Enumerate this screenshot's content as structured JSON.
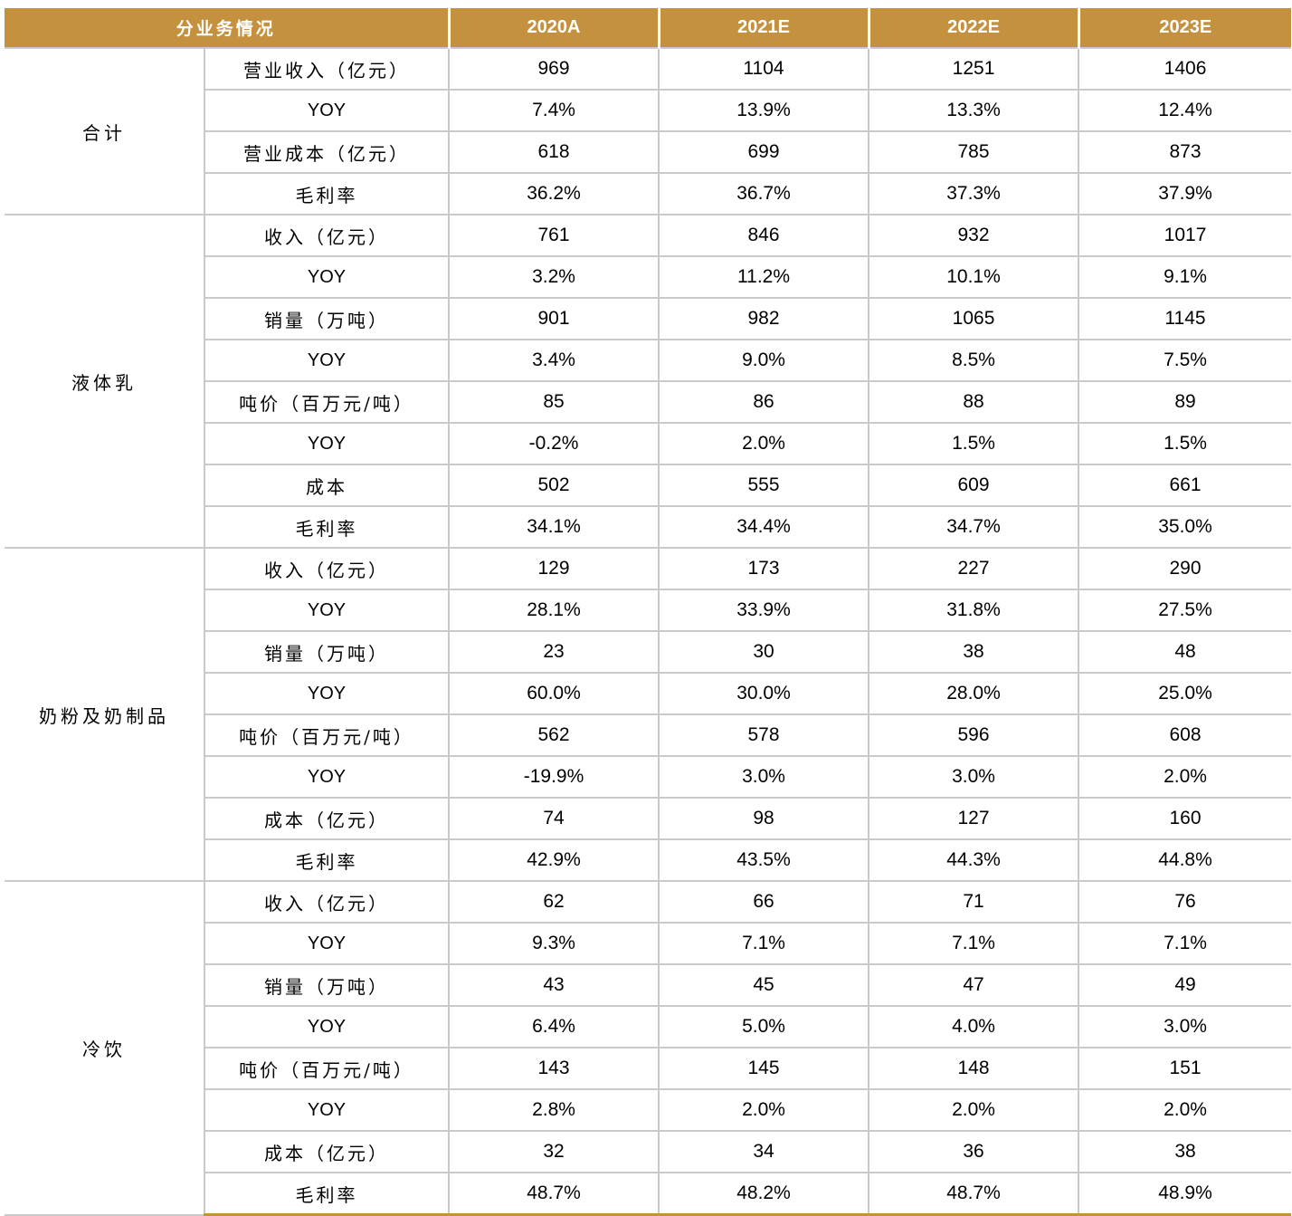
{
  "table": {
    "header": [
      "分业务情况",
      "2020A",
      "2021E",
      "2022E",
      "2023E"
    ],
    "segments": [
      {
        "name": "合计",
        "rows": [
          {
            "label": "营业收入（亿元）",
            "values": [
              "969",
              "1104",
              "1251",
              "1406"
            ]
          },
          {
            "label": "YOY",
            "values": [
              "7.4%",
              "13.9%",
              "13.3%",
              "12.4%"
            ]
          },
          {
            "label": "营业成本（亿元）",
            "values": [
              "618",
              "699",
              "785",
              "873"
            ]
          },
          {
            "label": "毛利率",
            "values": [
              "36.2%",
              "36.7%",
              "37.3%",
              "37.9%"
            ]
          }
        ]
      },
      {
        "name": "液体乳",
        "rows": [
          {
            "label": "收入（亿元）",
            "values": [
              "761",
              "846",
              "932",
              "1017"
            ]
          },
          {
            "label": "YOY",
            "values": [
              "3.2%",
              "11.2%",
              "10.1%",
              "9.1%"
            ]
          },
          {
            "label": "销量（万吨）",
            "values": [
              "901",
              "982",
              "1065",
              "1145"
            ]
          },
          {
            "label": "YOY",
            "values": [
              "3.4%",
              "9.0%",
              "8.5%",
              "7.5%"
            ]
          },
          {
            "label": "吨价（百万元/吨）",
            "values": [
              "85",
              "86",
              "88",
              "89"
            ]
          },
          {
            "label": "YOY",
            "values": [
              "-0.2%",
              "2.0%",
              "1.5%",
              "1.5%"
            ]
          },
          {
            "label": "成本",
            "values": [
              "502",
              "555",
              "609",
              "661"
            ]
          },
          {
            "label": "毛利率",
            "values": [
              "34.1%",
              "34.4%",
              "34.7%",
              "35.0%"
            ]
          }
        ]
      },
      {
        "name": "奶粉及奶制品",
        "rows": [
          {
            "label": "收入（亿元）",
            "values": [
              "129",
              "173",
              "227",
              "290"
            ]
          },
          {
            "label": "YOY",
            "values": [
              "28.1%",
              "33.9%",
              "31.8%",
              "27.5%"
            ]
          },
          {
            "label": "销量（万吨）",
            "values": [
              "23",
              "30",
              "38",
              "48"
            ]
          },
          {
            "label": "YOY",
            "values": [
              "60.0%",
              "30.0%",
              "28.0%",
              "25.0%"
            ]
          },
          {
            "label": "吨价（百万元/吨）",
            "values": [
              "562",
              "578",
              "596",
              "608"
            ]
          },
          {
            "label": "YOY",
            "values": [
              "-19.9%",
              "3.0%",
              "3.0%",
              "2.0%"
            ]
          },
          {
            "label": "成本（亿元）",
            "values": [
              "74",
              "98",
              "127",
              "160"
            ]
          },
          {
            "label": "毛利率",
            "values": [
              "42.9%",
              "43.5%",
              "44.3%",
              "44.8%"
            ]
          }
        ]
      },
      {
        "name": "冷饮",
        "rows": [
          {
            "label": "收入（亿元）",
            "values": [
              "62",
              "66",
              "71",
              "76"
            ]
          },
          {
            "label": "YOY",
            "values": [
              "9.3%",
              "7.1%",
              "7.1%",
              "7.1%"
            ]
          },
          {
            "label": "销量（万吨）",
            "values": [
              "43",
              "45",
              "47",
              "49"
            ]
          },
          {
            "label": "YOY",
            "values": [
              "6.4%",
              "5.0%",
              "4.0%",
              "3.0%"
            ]
          },
          {
            "label": "吨价（百万元/吨）",
            "values": [
              "143",
              "145",
              "148",
              "151"
            ]
          },
          {
            "label": "YOY",
            "values": [
              "2.8%",
              "2.0%",
              "2.0%",
              "2.0%"
            ]
          },
          {
            "label": "成本（亿元）",
            "values": [
              "32",
              "34",
              "36",
              "38"
            ]
          },
          {
            "label": "毛利率",
            "values": [
              "48.7%",
              "48.2%",
              "48.7%",
              "48.9%"
            ]
          }
        ]
      }
    ]
  }
}
